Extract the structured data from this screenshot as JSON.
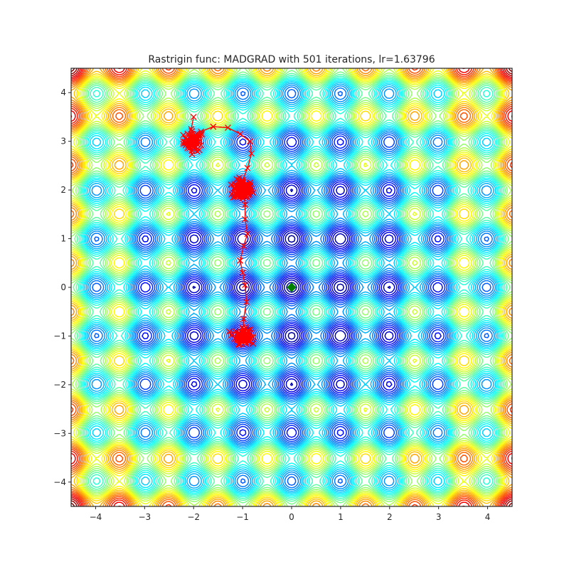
{
  "chart_data": {
    "type": "contour",
    "title": "Rastrigin func: MADGRAD with 501 iterations, lr=1.63796",
    "function": "rastrigin",
    "xlabel": "",
    "ylabel": "",
    "xlim": [
      -4.5,
      4.5
    ],
    "ylim": [
      -4.5,
      4.5
    ],
    "x_ticks": [
      -4,
      -3,
      -2,
      -1,
      0,
      1,
      2,
      3,
      4
    ],
    "y_ticks": [
      -4,
      -3,
      -2,
      -1,
      0,
      1,
      2,
      3,
      4
    ],
    "x_tick_labels": [
      "−4",
      "−3",
      "−2",
      "−1",
      "0",
      "1",
      "2",
      "3",
      "4"
    ],
    "y_tick_labels": [
      "−4",
      "−3",
      "−2",
      "−1",
      "0",
      "1",
      "2",
      "3",
      "4"
    ],
    "grid": false,
    "colormap": "jet",
    "minimum": {
      "x": 0,
      "y": 0,
      "color": "#008000",
      "marker": "diamond"
    },
    "path_color": "#ff0000",
    "path": {
      "start": [
        -2.0,
        3.5
      ],
      "waypoints": [
        [
          -2.0,
          3.5
        ],
        [
          -2.05,
          3.25
        ],
        [
          -2.0,
          3.05
        ],
        [
          -2.0,
          3.0
        ],
        [
          -1.85,
          3.2
        ],
        [
          -1.6,
          3.3
        ],
        [
          -1.3,
          3.28
        ],
        [
          -1.05,
          3.15
        ],
        [
          -0.85,
          3.0
        ],
        [
          -0.82,
          2.75
        ],
        [
          -0.9,
          2.45
        ],
        [
          -1.0,
          2.2
        ],
        [
          -1.0,
          2.0
        ],
        [
          -0.95,
          1.7
        ],
        [
          -0.95,
          1.4
        ],
        [
          -0.9,
          1.1
        ],
        [
          -0.98,
          0.85
        ],
        [
          -1.05,
          0.55
        ],
        [
          -1.0,
          0.3
        ],
        [
          -0.95,
          0.05
        ],
        [
          -0.92,
          -0.3
        ],
        [
          -0.98,
          -0.65
        ],
        [
          -1.0,
          -1.0
        ]
      ],
      "clusters": [
        {
          "center": [
            -2.0,
            3.0
          ],
          "spread": 0.17,
          "count": 55
        },
        {
          "center": [
            -1.0,
            2.0
          ],
          "spread": 0.17,
          "count": 110
        },
        {
          "center": [
            -1.0,
            -1.0
          ],
          "spread": 0.13,
          "count": 80
        }
      ]
    }
  }
}
